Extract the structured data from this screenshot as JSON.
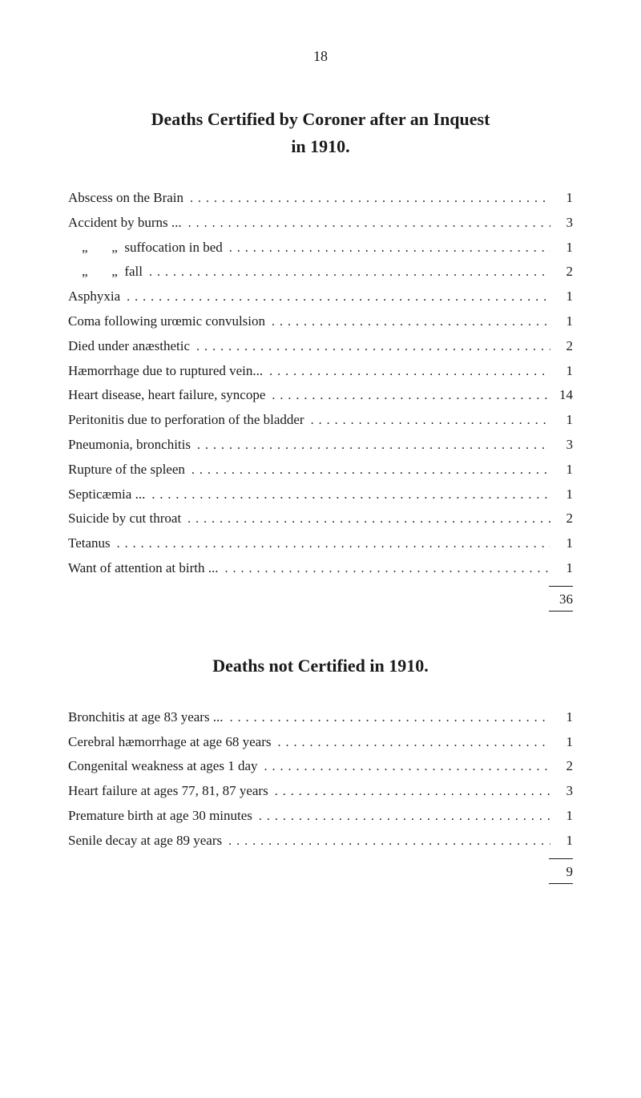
{
  "page_number": "18",
  "section1": {
    "title_line1": "Deaths Certified by Coroner after an Inquest",
    "title_line2": "in 1910.",
    "entries": [
      {
        "label": "Abscess on the Brain",
        "value": "1"
      },
      {
        "label": "Accident by burns ...",
        "value": "3"
      },
      {
        "label": "    „       „  suffocation in bed",
        "value": "1"
      },
      {
        "label": "    „       „  fall",
        "value": "2"
      },
      {
        "label": "Asphyxia",
        "value": "1"
      },
      {
        "label": "Coma following urœmic convulsion",
        "value": "1"
      },
      {
        "label": "Died under anæsthetic",
        "value": "2"
      },
      {
        "label": "Hæmorrhage due to ruptured vein...",
        "value": "1"
      },
      {
        "label": "Heart disease, heart failure, syncope",
        "value": "14"
      },
      {
        "label": "Peritonitis due to perforation of the bladder",
        "value": "1"
      },
      {
        "label": "Pneumonia, bronchitis",
        "value": "3"
      },
      {
        "label": "Rupture of the spleen",
        "value": "1"
      },
      {
        "label": "Septicæmia ...",
        "value": "1"
      },
      {
        "label": "Suicide by cut throat",
        "value": "2"
      },
      {
        "label": "Tetanus",
        "value": "1"
      },
      {
        "label": "Want of attention at birth ...",
        "value": "1"
      }
    ],
    "total": "36"
  },
  "section2": {
    "title": "Deaths not Certified in 1910.",
    "entries": [
      {
        "label": "Bronchitis at age 83 years ...",
        "value": "1"
      },
      {
        "label": "Cerebral hæmorrhage at age 68 years",
        "value": "1"
      },
      {
        "label": "Congenital weakness at ages 1 day",
        "value": "2"
      },
      {
        "label": "Heart failure at ages 77, 81, 87 years",
        "value": "3"
      },
      {
        "label": "Premature birth at age 30 minutes",
        "value": "1"
      },
      {
        "label": "Senile decay at age 89 years",
        "value": "1"
      }
    ],
    "total": "9"
  },
  "colors": {
    "background": "#ffffff",
    "text": "#1a1a1a"
  },
  "typography": {
    "page_number_size": 18,
    "title_size": 22,
    "body_size": 17
  }
}
